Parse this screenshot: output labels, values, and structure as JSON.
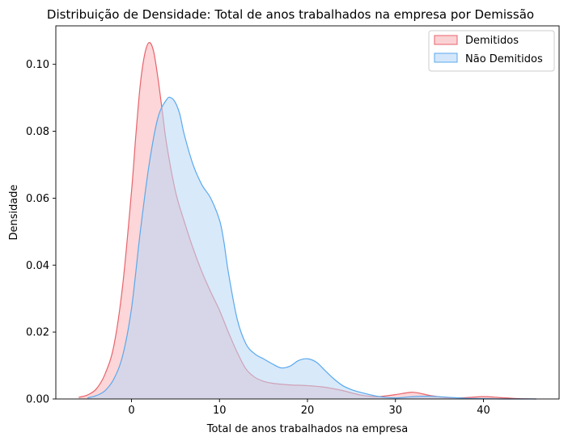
{
  "chart_data": {
    "type": "area",
    "title": "Distribuição de Densidade: Total de anos trabalhados na empresa por Demissão",
    "xlabel": "Total de anos trabalhados na empresa",
    "ylabel": "Densidade",
    "xlim": [
      -8.6,
      48.6
    ],
    "ylim": [
      0,
      0.1115
    ],
    "xticks": [
      0,
      10,
      20,
      30,
      40
    ],
    "yticks": [
      0.0,
      0.02,
      0.04,
      0.06,
      0.08,
      0.1
    ],
    "ytick_labels": [
      "0.00",
      "0.02",
      "0.04",
      "0.06",
      "0.08",
      "0.10"
    ],
    "legend_position": "upper-right",
    "series": [
      {
        "name": "Demitidos",
        "line_color": "#e8636b",
        "fill_color": "#f9b4b8",
        "x": [
          -6,
          -5,
          -4,
          -3,
          -2,
          -1,
          0,
          0.5,
          1,
          1.5,
          2,
          2.5,
          3,
          3.5,
          4,
          5,
          6,
          7,
          8,
          9,
          10,
          11,
          12,
          13,
          14,
          15,
          16,
          18,
          20,
          22,
          24,
          26,
          28,
          30,
          32,
          34,
          36,
          38,
          40,
          42,
          44,
          46
        ],
        "y": [
          0.0005,
          0.0012,
          0.003,
          0.0075,
          0.016,
          0.034,
          0.062,
          0.079,
          0.094,
          0.103,
          0.1065,
          0.104,
          0.096,
          0.086,
          0.076,
          0.062,
          0.053,
          0.045,
          0.038,
          0.032,
          0.0265,
          0.02,
          0.014,
          0.009,
          0.0065,
          0.0053,
          0.0047,
          0.0042,
          0.004,
          0.0035,
          0.0025,
          0.0012,
          0.0007,
          0.0013,
          0.002,
          0.001,
          0.0004,
          0.0004,
          0.0007,
          0.0004,
          0.0001,
          0.0
        ]
      },
      {
        "name": "Não Demitidos",
        "line_color": "#5aa9ed",
        "fill_color": "#b8d7f6",
        "x": [
          -5,
          -4,
          -3,
          -2,
          -1,
          0,
          1,
          2,
          3,
          4,
          4.5,
          5,
          5.5,
          6,
          7,
          8,
          9,
          10,
          10.5,
          11,
          12,
          13,
          14,
          15,
          16,
          17,
          18,
          19,
          20,
          21,
          22,
          23,
          24,
          25,
          26,
          28,
          30,
          32,
          34,
          36,
          38,
          40,
          42,
          44,
          46
        ],
        "y": [
          0.0003,
          0.001,
          0.0025,
          0.006,
          0.013,
          0.027,
          0.05,
          0.07,
          0.084,
          0.0895,
          0.09,
          0.0885,
          0.085,
          0.079,
          0.07,
          0.064,
          0.06,
          0.0535,
          0.047,
          0.038,
          0.024,
          0.0165,
          0.0135,
          0.012,
          0.0105,
          0.0093,
          0.0098,
          0.0115,
          0.012,
          0.011,
          0.0085,
          0.006,
          0.004,
          0.0028,
          0.002,
          0.0008,
          0.0003,
          0.0007,
          0.0008,
          0.0005,
          0.0002,
          0.0001,
          0.0,
          0.0,
          0.0
        ]
      }
    ]
  }
}
